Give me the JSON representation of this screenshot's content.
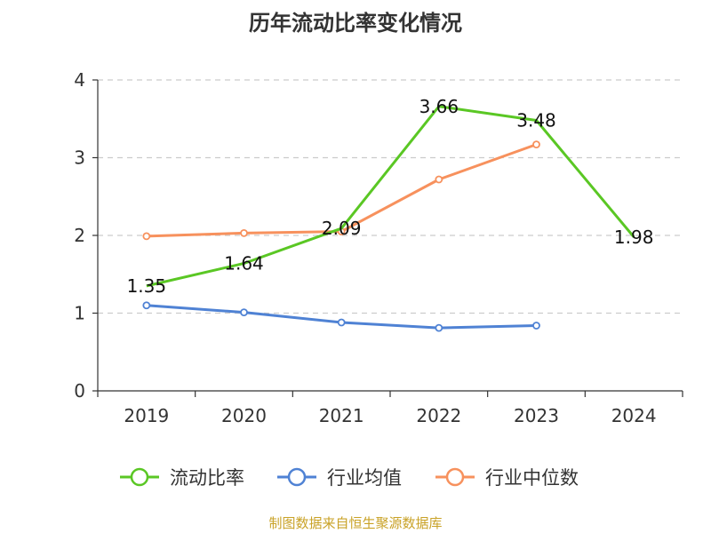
{
  "chart_data": {
    "type": "line",
    "title": "历年流动比率变化情况",
    "categories": [
      "2019",
      "2020",
      "2021",
      "2022",
      "2023",
      "2024"
    ],
    "ylim": [
      0,
      4
    ],
    "yticks": [
      0,
      1,
      2,
      3,
      4
    ],
    "grid": true,
    "legend_position": "bottom",
    "series": [
      {
        "name": "流动比率",
        "color": "#5ac724",
        "values": [
          1.35,
          1.64,
          2.09,
          3.66,
          3.48,
          1.98
        ],
        "labels": [
          "1.35",
          "1.64",
          "2.09",
          "3.66",
          "3.48",
          "1.98"
        ]
      },
      {
        "name": "行业均值",
        "color": "#4f82d4",
        "values": [
          1.1,
          1.01,
          0.88,
          0.81,
          0.84,
          null
        ]
      },
      {
        "name": "行业中位数",
        "color": "#f7915d",
        "values": [
          1.99,
          2.03,
          2.05,
          2.72,
          3.17,
          null
        ]
      }
    ]
  },
  "footer": {
    "source": "制图数据来自恒生聚源数据库"
  }
}
